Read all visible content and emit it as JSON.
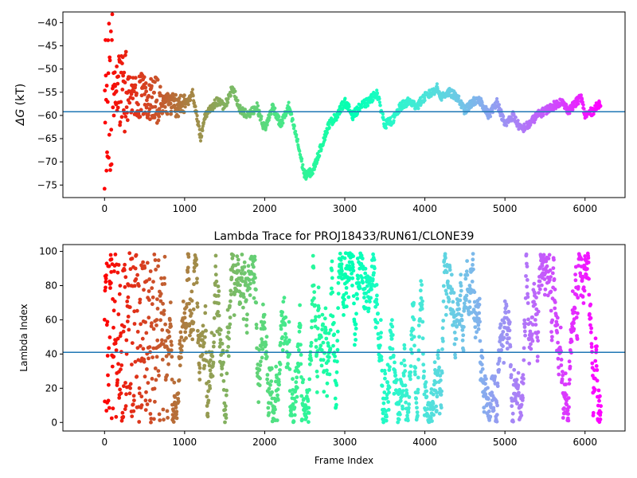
{
  "chart_data": [
    {
      "type": "scatter",
      "title": "",
      "xlabel": "",
      "ylabel": "ΔG (kT)",
      "ylabel_symbol": "ΔG",
      "ylabel_unit": " (kT)",
      "xlim": [
        -520,
        6500
      ],
      "ylim": [
        -77.7,
        -37.7
      ],
      "xticks": [
        0,
        1000,
        2000,
        3000,
        4000,
        5000,
        6000
      ],
      "yticks": [
        -75,
        -70,
        -65,
        -60,
        -55,
        -50,
        -45,
        -40
      ],
      "hline": -59.2,
      "colormap": "rainbow (colored by frame index)",
      "trajectory_keypoints": [
        [
          0,
          -60
        ],
        [
          60,
          -55
        ],
        [
          150,
          -55
        ],
        [
          300,
          -55
        ],
        [
          500,
          -56
        ],
        [
          700,
          -57
        ],
        [
          900,
          -58
        ],
        [
          1050,
          -57
        ],
        [
          1100,
          -55
        ],
        [
          1150,
          -60
        ],
        [
          1200,
          -65
        ],
        [
          1250,
          -60
        ],
        [
          1300,
          -59
        ],
        [
          1400,
          -57
        ],
        [
          1500,
          -58
        ],
        [
          1600,
          -54
        ],
        [
          1700,
          -59
        ],
        [
          1800,
          -60
        ],
        [
          1900,
          -58
        ],
        [
          2000,
          -63
        ],
        [
          2100,
          -58
        ],
        [
          2200,
          -62
        ],
        [
          2300,
          -58
        ],
        [
          2400,
          -65
        ],
        [
          2500,
          -73
        ],
        [
          2600,
          -72
        ],
        [
          2700,
          -67
        ],
        [
          2800,
          -62
        ],
        [
          2900,
          -60
        ],
        [
          3000,
          -57
        ],
        [
          3100,
          -60
        ],
        [
          3200,
          -58
        ],
        [
          3300,
          -57
        ],
        [
          3400,
          -55
        ],
        [
          3500,
          -62
        ],
        [
          3600,
          -61
        ],
        [
          3700,
          -58
        ],
        [
          3800,
          -57
        ],
        [
          3900,
          -58
        ],
        [
          4000,
          -56
        ],
        [
          4100,
          -55
        ],
        [
          4150,
          -54
        ],
        [
          4200,
          -56
        ],
        [
          4300,
          -55
        ],
        [
          4400,
          -56
        ],
        [
          4500,
          -59
        ],
        [
          4600,
          -57
        ],
        [
          4700,
          -57
        ],
        [
          4800,
          -60
        ],
        [
          4900,
          -57
        ],
        [
          5000,
          -62
        ],
        [
          5100,
          -60
        ],
        [
          5200,
          -63
        ],
        [
          5300,
          -62
        ],
        [
          5400,
          -60
        ],
        [
          5500,
          -59
        ],
        [
          5600,
          -58
        ],
        [
          5700,
          -57
        ],
        [
          5800,
          -59
        ],
        [
          5900,
          -57
        ],
        [
          5950,
          -56
        ],
        [
          6000,
          -60
        ],
        [
          6100,
          -59
        ],
        [
          6200,
          -57
        ]
      ]
    },
    {
      "type": "scatter",
      "title": "Lambda Trace for PROJ18433/RUN61/CLONE39",
      "xlabel": "Frame Index",
      "ylabel": "Lambda Index",
      "xlim": [
        -520,
        6500
      ],
      "ylim": [
        -5,
        104
      ],
      "xticks": [
        0,
        1000,
        2000,
        3000,
        4000,
        5000,
        6000
      ],
      "yticks": [
        0,
        20,
        40,
        60,
        80,
        100
      ],
      "hline": 41,
      "colormap": "rainbow (colored by frame index)",
      "n_frames": 6200,
      "lambda_range": [
        0,
        99
      ]
    }
  ]
}
